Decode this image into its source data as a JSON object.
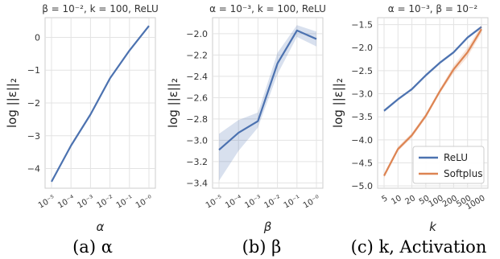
{
  "chart_data": [
    {
      "type": "line",
      "title": "β = 10⁻², k = 100, ReLU",
      "xlabel": "α",
      "ylabel": "log ||ε||₂",
      "caption": "(a) α",
      "x_categories": [
        "10⁻⁵",
        "10⁻⁴",
        "10⁻³",
        "10⁻²",
        "10⁻¹",
        "10⁻⁰"
      ],
      "ylim": [
        -4.6,
        0.6
      ],
      "yticks": [
        0,
        -1,
        -2,
        -3,
        -4
      ],
      "grid": true,
      "colors": {
        "line": "#4c72b0"
      },
      "series": [
        {
          "values": [
            -4.4,
            -3.3,
            -2.35,
            -1.25,
            -0.4,
            0.35
          ],
          "lower": [
            -4.42,
            -3.32,
            -2.37,
            -1.27,
            -0.42,
            0.33
          ],
          "upper": [
            -4.38,
            -3.28,
            -2.33,
            -1.23,
            -0.38,
            0.37
          ],
          "color": "#4c72b0"
        }
      ]
    },
    {
      "type": "line",
      "title": "α = 10⁻³, k = 100, ReLU",
      "xlabel": "β",
      "ylabel": "log ||ε||₂",
      "caption": "(b) β",
      "x_categories": [
        "10⁻⁵",
        "10⁻⁴",
        "10⁻³",
        "10⁻²",
        "10⁻¹",
        "10⁻⁰"
      ],
      "ylim": [
        -3.45,
        -1.85
      ],
      "yticks": [
        -2.0,
        -2.2,
        -2.4,
        -2.6,
        -2.8,
        -3.0,
        -3.2,
        -3.4
      ],
      "grid": true,
      "colors": {
        "line": "#4c72b0"
      },
      "series": [
        {
          "values": [
            -3.09,
            -2.93,
            -2.82,
            -2.28,
            -1.97,
            -2.05
          ],
          "lower": [
            -3.38,
            -3.1,
            -2.88,
            -2.38,
            -2.03,
            -2.12
          ],
          "upper": [
            -2.94,
            -2.81,
            -2.74,
            -2.18,
            -1.92,
            -1.98
          ],
          "color": "#4c72b0"
        }
      ]
    },
    {
      "type": "line",
      "title": "α = 10⁻³, β = 10⁻²",
      "xlabel": "k",
      "ylabel": "log ||ε||₂",
      "caption": "(c) k, Activation",
      "x_categories": [
        "5",
        "10",
        "20",
        "50",
        "100",
        "200",
        "500",
        "1000"
      ],
      "ylim": [
        -5.05,
        -1.35
      ],
      "yticks": [
        -1.5,
        -2.0,
        -2.5,
        -3.0,
        -3.5,
        -4.0,
        -4.5,
        -5.0
      ],
      "grid": true,
      "legend": {
        "placement": "bottom-right"
      },
      "colors": {
        "relu": "#4c72b0",
        "softplus": "#dd8452"
      },
      "series": [
        {
          "name": "ReLU",
          "values": [
            -3.37,
            -3.12,
            -2.9,
            -2.6,
            -2.33,
            -2.1,
            -1.78,
            -1.55
          ],
          "lower": [
            -3.4,
            -3.15,
            -2.93,
            -2.63,
            -2.36,
            -2.13,
            -1.81,
            -1.58
          ],
          "upper": [
            -3.34,
            -3.09,
            -2.87,
            -2.57,
            -2.3,
            -2.07,
            -1.75,
            -1.52
          ],
          "color": "#4c72b0"
        },
        {
          "name": "Softplus",
          "values": [
            -4.78,
            -4.2,
            -3.9,
            -3.48,
            -2.95,
            -2.47,
            -2.1,
            -1.6
          ],
          "lower": [
            -4.83,
            -4.25,
            -3.95,
            -3.53,
            -3.0,
            -2.55,
            -2.2,
            -1.68
          ],
          "upper": [
            -4.73,
            -4.15,
            -3.85,
            -3.43,
            -2.9,
            -2.39,
            -2.0,
            -1.52
          ],
          "color": "#dd8452"
        }
      ]
    }
  ]
}
